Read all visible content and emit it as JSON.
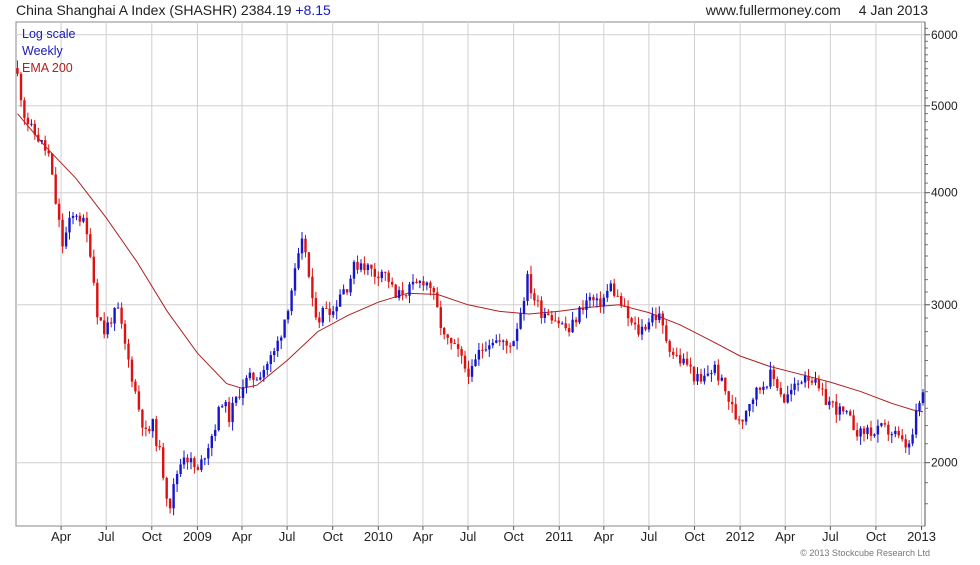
{
  "header": {
    "title": "China Shanghai A Index (SHASHR)",
    "last_price": "2384.19",
    "change": "+8.15",
    "website": "www.fullermoney.com",
    "date": "4 Jan 2013"
  },
  "legend": {
    "scale": "Log scale",
    "interval": "Weekly",
    "indicator": "EMA 200"
  },
  "copyright": "© 2013 Stockcube Research Ltd",
  "colors": {
    "up": "#1515cc",
    "down": "#dd1111",
    "ema": "#b02020",
    "scale_text": "#1a1ab4",
    "interval_text": "#1a1ab4",
    "indicator_text": "#b02020",
    "grid": "#d0d0d0"
  },
  "chart_data": {
    "type": "candlestick",
    "scale": "log",
    "interval": "weekly",
    "ylim": [
      1700,
      6200
    ],
    "y_ticks": [
      2000,
      3000,
      4000,
      5000,
      6000
    ],
    "x_ticks": [
      {
        "label": "Apr",
        "date": "2008-04-01"
      },
      {
        "label": "Jul",
        "date": "2008-07-01"
      },
      {
        "label": "Oct",
        "date": "2008-10-01"
      },
      {
        "label": "2009",
        "date": "2009-01-01"
      },
      {
        "label": "Apr",
        "date": "2009-04-01"
      },
      {
        "label": "Jul",
        "date": "2009-07-01"
      },
      {
        "label": "Oct",
        "date": "2009-10-01"
      },
      {
        "label": "2010",
        "date": "2010-01-01"
      },
      {
        "label": "Apr",
        "date": "2010-04-01"
      },
      {
        "label": "Jul",
        "date": "2010-07-01"
      },
      {
        "label": "Oct",
        "date": "2010-10-01"
      },
      {
        "label": "2011",
        "date": "2011-01-01"
      },
      {
        "label": "Apr",
        "date": "2011-04-01"
      },
      {
        "label": "Jul",
        "date": "2011-07-01"
      },
      {
        "label": "Oct",
        "date": "2011-10-01"
      },
      {
        "label": "2012",
        "date": "2012-01-01"
      },
      {
        "label": "Apr",
        "date": "2012-04-01"
      },
      {
        "label": "Jul",
        "date": "2012-07-01"
      },
      {
        "label": "Oct",
        "date": "2012-10-01"
      },
      {
        "label": "2013",
        "date": "2013-01-01"
      }
    ],
    "close_path": [
      [
        "2008-01-04",
        5400
      ],
      [
        "2008-01-18",
        4900
      ],
      [
        "2008-02-01",
        4700
      ],
      [
        "2008-02-15",
        4600
      ],
      [
        "2008-03-07",
        4400
      ],
      [
        "2008-03-21",
        3900
      ],
      [
        "2008-04-04",
        3500
      ],
      [
        "2008-04-18",
        3700
      ],
      [
        "2008-05-02",
        3800
      ],
      [
        "2008-05-16",
        3700
      ],
      [
        "2008-05-30",
        3450
      ],
      [
        "2008-06-13",
        2950
      ],
      [
        "2008-06-27",
        2800
      ],
      [
        "2008-07-11",
        2900
      ],
      [
        "2008-07-25",
        2950
      ],
      [
        "2008-08-08",
        2700
      ],
      [
        "2008-08-22",
        2500
      ],
      [
        "2008-09-05",
        2300
      ],
      [
        "2008-09-19",
        2150
      ],
      [
        "2008-10-03",
        2200
      ],
      [
        "2008-10-17",
        2050
      ],
      [
        "2008-10-31",
        1850
      ],
      [
        "2008-11-07",
        1800
      ],
      [
        "2008-11-21",
        1950
      ],
      [
        "2008-12-05",
        2050
      ],
      [
        "2008-12-19",
        2000
      ],
      [
        "2009-01-02",
        1950
      ],
      [
        "2009-01-16",
        2050
      ],
      [
        "2009-02-06",
        2200
      ],
      [
        "2009-02-20",
        2350
      ],
      [
        "2009-03-06",
        2250
      ],
      [
        "2009-03-20",
        2350
      ],
      [
        "2009-04-03",
        2450
      ],
      [
        "2009-04-17",
        2480
      ],
      [
        "2009-05-01",
        2500
      ],
      [
        "2009-05-15",
        2550
      ],
      [
        "2009-06-05",
        2650
      ],
      [
        "2009-06-19",
        2800
      ],
      [
        "2009-07-03",
        3000
      ],
      [
        "2009-07-17",
        3250
      ],
      [
        "2009-07-31",
        3500
      ],
      [
        "2009-08-07",
        3450
      ],
      [
        "2009-08-21",
        3000
      ],
      [
        "2009-09-04",
        2900
      ],
      [
        "2009-09-18",
        3000
      ],
      [
        "2009-10-02",
        2950
      ],
      [
        "2009-10-16",
        3100
      ],
      [
        "2009-10-30",
        3150
      ],
      [
        "2009-11-13",
        3300
      ],
      [
        "2009-11-27",
        3350
      ],
      [
        "2009-12-11",
        3300
      ],
      [
        "2009-12-25",
        3250
      ],
      [
        "2010-01-08",
        3280
      ],
      [
        "2010-01-22",
        3200
      ],
      [
        "2010-02-05",
        3050
      ],
      [
        "2010-02-19",
        3100
      ],
      [
        "2010-03-05",
        3120
      ],
      [
        "2010-03-19",
        3150
      ],
      [
        "2010-04-02",
        3200
      ],
      [
        "2010-04-16",
        3150
      ],
      [
        "2010-04-30",
        2950
      ],
      [
        "2010-05-14",
        2750
      ],
      [
        "2010-05-28",
        2700
      ],
      [
        "2010-06-11",
        2650
      ],
      [
        "2010-06-25",
        2550
      ],
      [
        "2010-07-09",
        2520
      ],
      [
        "2010-07-23",
        2650
      ],
      [
        "2010-08-06",
        2720
      ],
      [
        "2010-08-20",
        2750
      ],
      [
        "2010-09-03",
        2720
      ],
      [
        "2010-09-17",
        2700
      ],
      [
        "2010-10-01",
        2750
      ],
      [
        "2010-10-15",
        2950
      ],
      [
        "2010-10-29",
        3200
      ],
      [
        "2010-11-12",
        3050
      ],
      [
        "2010-11-26",
        2950
      ],
      [
        "2010-12-10",
        2950
      ],
      [
        "2010-12-24",
        2900
      ],
      [
        "2011-01-07",
        2850
      ],
      [
        "2011-01-21",
        2800
      ],
      [
        "2011-02-04",
        2900
      ],
      [
        "2011-02-18",
        3000
      ],
      [
        "2011-03-04",
        3050
      ],
      [
        "2011-03-18",
        3000
      ],
      [
        "2011-04-01",
        3050
      ],
      [
        "2011-04-15",
        3150
      ],
      [
        "2011-04-29",
        3050
      ],
      [
        "2011-05-13",
        2950
      ],
      [
        "2011-05-27",
        2850
      ],
      [
        "2011-06-10",
        2800
      ],
      [
        "2011-06-24",
        2850
      ],
      [
        "2011-07-08",
        2920
      ],
      [
        "2011-07-22",
        2900
      ],
      [
        "2011-08-05",
        2750
      ],
      [
        "2011-08-19",
        2650
      ],
      [
        "2011-09-02",
        2600
      ],
      [
        "2011-09-16",
        2580
      ],
      [
        "2011-09-30",
        2500
      ],
      [
        "2011-10-14",
        2450
      ],
      [
        "2011-10-28",
        2520
      ],
      [
        "2011-11-11",
        2550
      ],
      [
        "2011-11-25",
        2450
      ],
      [
        "2011-12-09",
        2350
      ],
      [
        "2011-12-23",
        2250
      ],
      [
        "2012-01-06",
        2250
      ],
      [
        "2012-01-20",
        2350
      ],
      [
        "2012-02-03",
        2400
      ],
      [
        "2012-02-17",
        2450
      ],
      [
        "2012-03-02",
        2500
      ],
      [
        "2012-03-16",
        2450
      ],
      [
        "2012-03-30",
        2350
      ],
      [
        "2012-04-13",
        2400
      ],
      [
        "2012-04-27",
        2450
      ],
      [
        "2012-05-11",
        2520
      ],
      [
        "2012-05-25",
        2480
      ],
      [
        "2012-06-08",
        2400
      ],
      [
        "2012-06-22",
        2350
      ],
      [
        "2012-07-06",
        2320
      ],
      [
        "2012-07-20",
        2280
      ],
      [
        "2012-08-03",
        2250
      ],
      [
        "2012-08-17",
        2200
      ],
      [
        "2012-08-31",
        2150
      ],
      [
        "2012-09-14",
        2180
      ],
      [
        "2012-09-28",
        2150
      ],
      [
        "2012-10-12",
        2180
      ],
      [
        "2012-10-26",
        2170
      ],
      [
        "2012-11-09",
        2150
      ],
      [
        "2012-11-23",
        2100
      ],
      [
        "2012-12-07",
        2080
      ],
      [
        "2012-12-14",
        2150
      ],
      [
        "2012-12-21",
        2250
      ],
      [
        "2012-12-28",
        2330
      ],
      [
        "2013-01-04",
        2384
      ]
    ],
    "ema_200": [
      [
        "2008-01-04",
        4900
      ],
      [
        "2008-03-01",
        4500
      ],
      [
        "2008-05-01",
        4150
      ],
      [
        "2008-07-01",
        3750
      ],
      [
        "2008-09-01",
        3350
      ],
      [
        "2008-11-01",
        2950
      ],
      [
        "2009-01-01",
        2650
      ],
      [
        "2009-03-01",
        2450
      ],
      [
        "2009-04-01",
        2420
      ],
      [
        "2009-05-01",
        2440
      ],
      [
        "2009-07-01",
        2600
      ],
      [
        "2009-09-01",
        2800
      ],
      [
        "2009-11-01",
        2920
      ],
      [
        "2010-01-01",
        3020
      ],
      [
        "2010-03-01",
        3090
      ],
      [
        "2010-05-01",
        3080
      ],
      [
        "2010-07-01",
        3000
      ],
      [
        "2010-09-01",
        2950
      ],
      [
        "2010-11-01",
        2930
      ],
      [
        "2011-01-01",
        2950
      ],
      [
        "2011-03-01",
        2980
      ],
      [
        "2011-05-01",
        3000
      ],
      [
        "2011-07-01",
        2940
      ],
      [
        "2011-09-01",
        2850
      ],
      [
        "2011-11-01",
        2740
      ],
      [
        "2012-01-01",
        2630
      ],
      [
        "2012-03-01",
        2560
      ],
      [
        "2012-05-01",
        2510
      ],
      [
        "2012-07-01",
        2460
      ],
      [
        "2012-09-01",
        2400
      ],
      [
        "2012-11-01",
        2330
      ],
      [
        "2012-12-15",
        2290
      ],
      [
        "2013-01-04",
        2280
      ]
    ]
  }
}
